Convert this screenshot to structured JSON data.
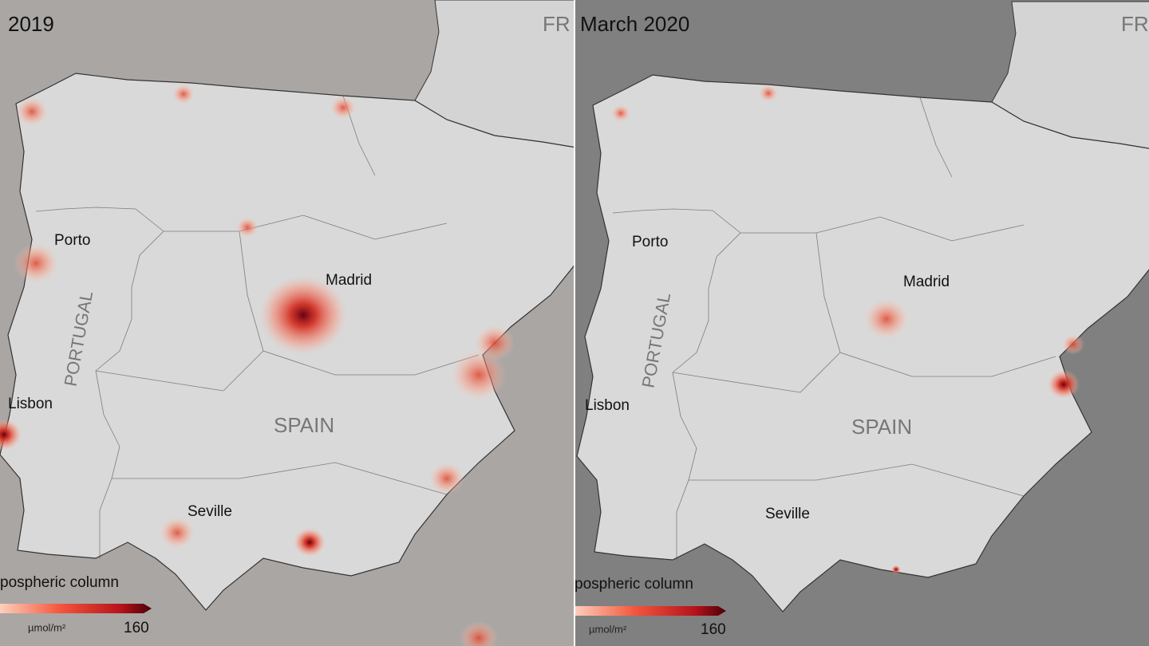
{
  "panels": [
    {
      "title": "2019",
      "labels": {
        "france": "FR",
        "porto": "Porto",
        "madrid": "Madrid",
        "portugal": "PORTUGAL",
        "lisbon": "Lisbon",
        "spain": "SPAIN",
        "seville": "Seville"
      },
      "legend": {
        "title": "pospheric column",
        "unit": "µmol/m²",
        "max": 160
      }
    },
    {
      "title": "March 2020",
      "labels": {
        "france": "FR",
        "porto": "Porto",
        "madrid": "Madrid",
        "portugal": "PORTUGAL",
        "lisbon": "Lisbon",
        "spain": "SPAIN",
        "seville": "Seville"
      },
      "legend": {
        "title": "pospheric column",
        "unit": "µmol/m²",
        "max": 160
      }
    }
  ]
}
